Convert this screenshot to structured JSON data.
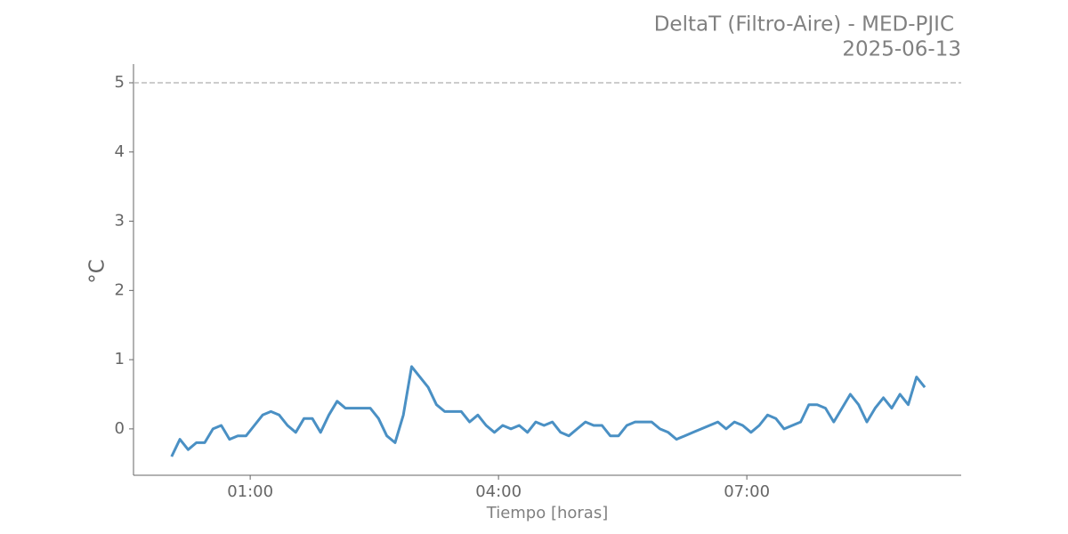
{
  "chart_data": {
    "type": "line",
    "title": "DeltaT (Filtro-Aire) - MED-PJIC",
    "subtitle": "2025-06-13",
    "x_label": "Tiempo [horas]",
    "y_label": "°C",
    "x": [
      0.05,
      0.15,
      0.25,
      0.35,
      0.45,
      0.55,
      0.65,
      0.75,
      0.85,
      0.95,
      1.05,
      1.15,
      1.25,
      1.35,
      1.45,
      1.55,
      1.65,
      1.75,
      1.85,
      1.95,
      2.05,
      2.15,
      2.25,
      2.35,
      2.45,
      2.55,
      2.65,
      2.75,
      2.85,
      2.95,
      3.05,
      3.15,
      3.25,
      3.35,
      3.45,
      3.55,
      3.65,
      3.75,
      3.85,
      3.95,
      4.05,
      4.15,
      4.25,
      4.35,
      4.45,
      4.55,
      4.65,
      4.75,
      4.85,
      4.95,
      5.05,
      5.15,
      5.25,
      5.35,
      5.45,
      5.55,
      5.65,
      5.75,
      5.85,
      5.95,
      6.05,
      6.15,
      6.25,
      6.35,
      6.45,
      6.55,
      6.65,
      6.75,
      6.85,
      6.95,
      7.05,
      7.15,
      7.25,
      7.35,
      7.45,
      7.55,
      7.65,
      7.75,
      7.85,
      7.95,
      8.05,
      8.15,
      8.25,
      8.35,
      8.45,
      8.55,
      8.65,
      8.75,
      8.85,
      8.95,
      9.05,
      9.15
    ],
    "series": [
      {
        "name": "DeltaT",
        "color": "#4a90c4",
        "values": [
          -0.4,
          -0.15,
          -0.3,
          -0.2,
          -0.2,
          0,
          0.05,
          -0.15,
          -0.1,
          -0.1,
          0.05,
          0.2,
          0.25,
          0.2,
          0.05,
          -0.05,
          0.15,
          0.15,
          -0.05,
          0.2,
          0.4,
          0.3,
          0.3,
          0.3,
          0.3,
          0.15,
          -0.1,
          -0.2,
          0.2,
          0.9,
          0.75,
          0.6,
          0.35,
          0.25,
          0.25,
          0.25,
          0.1,
          0.2,
          0.05,
          -0.05,
          0.05,
          0,
          0.05,
          -0.05,
          0.1,
          0.05,
          0.1,
          -0.05,
          -0.1,
          0,
          0.1,
          0.05,
          0.05,
          -0.1,
          -0.1,
          0.05,
          0.1,
          0.1,
          0.1,
          0,
          -0.05,
          -0.15,
          -0.1,
          -0.05,
          0,
          0.05,
          0.1,
          0,
          0.1,
          0.05,
          -0.05,
          0.05,
          0.2,
          0.15,
          0,
          0.05,
          0.1,
          0.35,
          0.35,
          0.3,
          0.1,
          0.3,
          0.5,
          0.35,
          0.1,
          0.3,
          0.45,
          0.3,
          0.5,
          0.35,
          0.75,
          0.6
        ]
      }
    ],
    "threshold": 5,
    "xlim": [
      -0.41,
      9.59
    ],
    "ylim": [
      -0.67,
      5.27
    ],
    "xticks": [
      {
        "value": 1,
        "label": "01:00"
      },
      {
        "value": 4,
        "label": "04:00"
      },
      {
        "value": 7,
        "label": "07:00"
      }
    ],
    "yticks": [
      0,
      1,
      2,
      3,
      4,
      5
    ]
  }
}
